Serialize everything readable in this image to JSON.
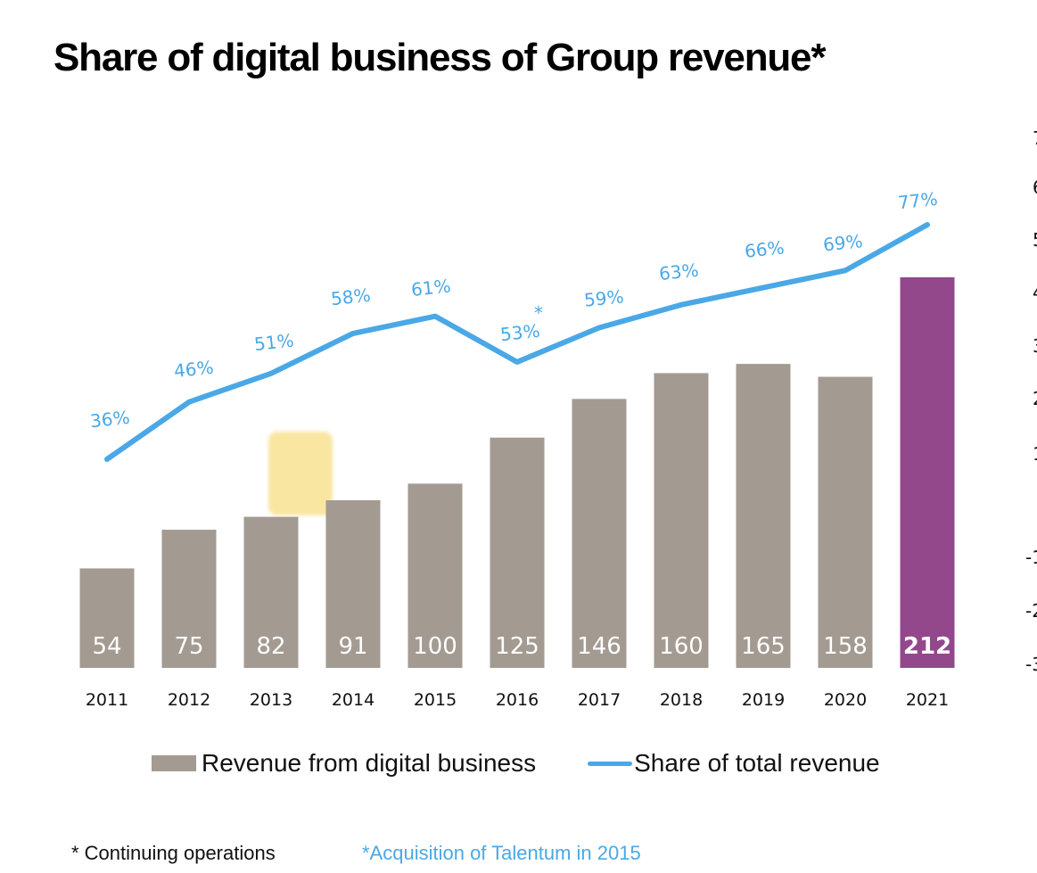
{
  "title": "Share of digital business of Group revenue*",
  "colors": {
    "bar": "#a39b92",
    "bar_highlight": "#93488c",
    "line": "#4aa8e6",
    "pct_label": "#4aa8e6",
    "marker": "#f8e08a"
  },
  "chart_data": {
    "type": "bar",
    "title": "Share of digital business of Group revenue*",
    "categories": [
      "2011",
      "2012",
      "2013",
      "2014",
      "2015",
      "2016",
      "2017",
      "2018",
      "2019",
      "2020",
      "2021"
    ],
    "series": [
      {
        "name": "Revenue from digital business",
        "type": "bar",
        "values": [
          54,
          75,
          82,
          91,
          100,
          125,
          146,
          160,
          165,
          158,
          212
        ],
        "labels": [
          "54",
          "75",
          "82",
          "91",
          "100",
          "125",
          "146",
          "160",
          "165",
          "158",
          "212"
        ],
        "highlight_index": 10
      },
      {
        "name": "Share of total revenue",
        "type": "line",
        "values": [
          36,
          46,
          51,
          58,
          61,
          53,
          59,
          63,
          66,
          69,
          77
        ],
        "labels": [
          "36%",
          "46%",
          "51%",
          "58%",
          "61%",
          "53%",
          "59%",
          "63%",
          "66%",
          "69%",
          "77%"
        ]
      }
    ],
    "annotations": [
      {
        "text": "*",
        "near_category": "2016",
        "series": "Share of total revenue"
      }
    ],
    "secondary_axis_ticks_partial": [
      "7",
      "6",
      "5",
      "4",
      "3",
      "2",
      "1",
      "-1",
      "-2",
      "-3"
    ],
    "xlabel": "",
    "ylabel": "",
    "grid": false,
    "legend": {
      "placement": "bottom",
      "entries": [
        "Revenue from digital business",
        "Share of total revenue"
      ]
    }
  },
  "footnotes": {
    "left": "* Continuing operations",
    "right": "*Acquisition of Talentum in 2015"
  }
}
